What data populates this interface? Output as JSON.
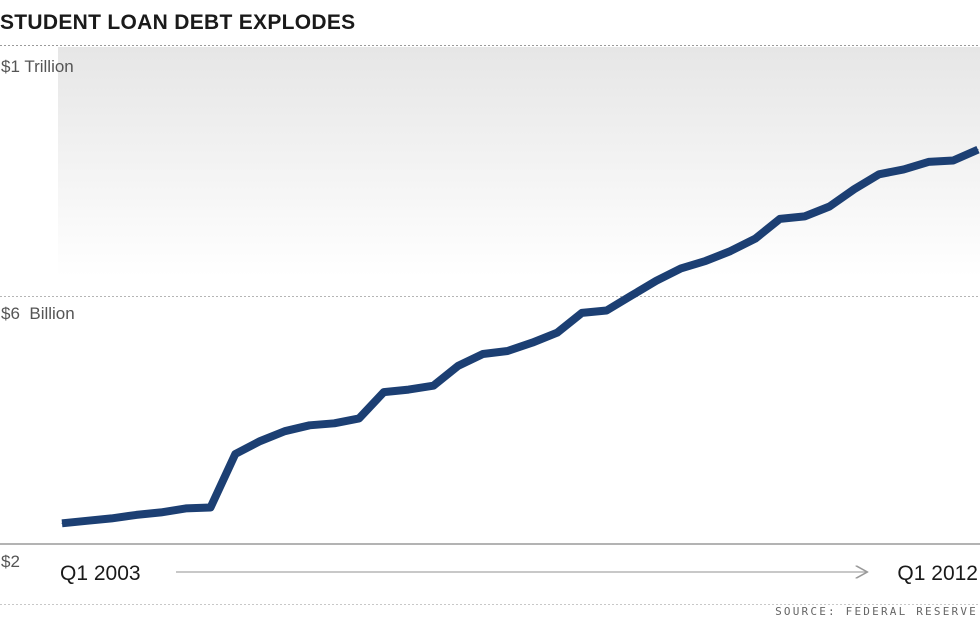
{
  "chart_data": {
    "type": "line",
    "title": "STUDENT LOAN DEBT EXPLODES",
    "y_tick_labels": [
      "$1 Trillion",
      "$6  Billion",
      "$2"
    ],
    "x_start_label": "Q1 2003",
    "x_end_label": "Q1 2012",
    "source": "SOURCE: FEDERAL RESERVE",
    "series": [
      {
        "color": "#1c3f73",
        "values": [
          0.06,
          0.065,
          0.07,
          0.077,
          0.082,
          0.09,
          0.092,
          0.2,
          0.226,
          0.246,
          0.258,
          0.262,
          0.272,
          0.325,
          0.33,
          0.338,
          0.378,
          0.402,
          0.408,
          0.425,
          0.445,
          0.485,
          0.49,
          0.52,
          0.55,
          0.575,
          0.59,
          0.61,
          0.635,
          0.675,
          0.68,
          0.7,
          0.735,
          0.765,
          0.775,
          0.79,
          0.793,
          0.815
        ]
      }
    ]
  }
}
